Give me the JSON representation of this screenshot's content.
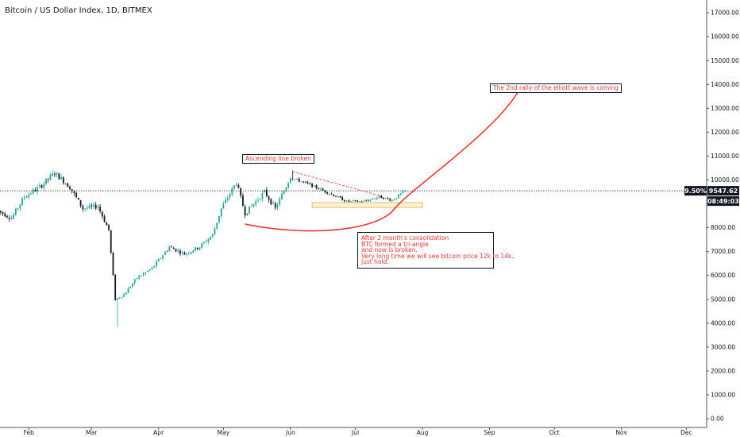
{
  "header": {
    "symbol_title": "Bitcoin / US Dollar Index, 1D, BITMEX"
  },
  "annotations": {
    "ascending": "Ascending  line broken",
    "rally": "The 2nd rally of the elliott wave is coming",
    "note": "After 2 month's consolidation\nBTC formed a tri-angle\nand now is broken.\nVery long time we will see bitcoin price 12k to 14k..\njust hold."
  },
  "price_scale": {
    "pct_change": "9.50%",
    "last_price": "9547.62",
    "countdown": "08:49:03"
  },
  "colors": {
    "up": "#26a69a",
    "down": "#131722",
    "annotation": "#e53935",
    "zone": "#fff3d6"
  },
  "chart_data": {
    "type": "candlestick",
    "title": "Bitcoin / US Dollar Index, 1D, BITMEX",
    "ylim": [
      0,
      17500
    ],
    "y_ticks": [
      "0.00",
      "1000.00",
      "2000.00",
      "3000.00",
      "4000.00",
      "5000.00",
      "6000.00",
      "7000.00",
      "8000.00",
      "9000.00",
      "10000.00",
      "11000.00",
      "12000.00",
      "13000.00",
      "14000.00",
      "15000.00",
      "16000.00",
      "17000.00"
    ],
    "x_ticks": [
      "Feb",
      "Mar",
      "Apr",
      "May",
      "Jun",
      "Jul",
      "Aug",
      "Sep",
      "Oct",
      "Nov",
      "Dec"
    ],
    "last_price": 9547.62,
    "close_path": [
      [
        "2020-01-18",
        8700
      ],
      [
        "2020-01-24",
        8400
      ],
      [
        "2020-01-30",
        9300
      ],
      [
        "2020-02-06",
        9700
      ],
      [
        "2020-02-13",
        10300
      ],
      [
        "2020-02-20",
        9700
      ],
      [
        "2020-02-26",
        8800
      ],
      [
        "2020-03-04",
        8900
      ],
      [
        "2020-03-09",
        7900
      ],
      [
        "2020-03-12",
        5000
      ],
      [
        "2020-03-16",
        5200
      ],
      [
        "2020-03-22",
        5900
      ],
      [
        "2020-03-29",
        6300
      ],
      [
        "2020-04-06",
        7200
      ],
      [
        "2020-04-13",
        6900
      ],
      [
        "2020-04-20",
        7200
      ],
      [
        "2020-04-26",
        7700
      ],
      [
        "2020-04-30",
        8800
      ],
      [
        "2020-05-07",
        9900
      ],
      [
        "2020-05-11",
        8600
      ],
      [
        "2020-05-20",
        9500
      ],
      [
        "2020-05-25",
        8800
      ],
      [
        "2020-06-01",
        10100
      ],
      [
        "2020-06-10",
        9800
      ],
      [
        "2020-06-20",
        9400
      ],
      [
        "2020-06-27",
        9100
      ],
      [
        "2020-07-05",
        9100
      ],
      [
        "2020-07-12",
        9300
      ],
      [
        "2020-07-18",
        9150
      ],
      [
        "2020-07-24",
        9550
      ]
    ],
    "low_extreme": {
      "date": "2020-03-13",
      "value": 3850
    },
    "high_extreme": {
      "date": "2020-06-02",
      "value": 10400
    },
    "consolidation_zone": {
      "from": "2020-06-11",
      "to": "2020-08-01",
      "low": 8850,
      "high": 9050
    },
    "descending_trendline": [
      [
        "2020-06-02",
        10350
      ],
      [
        "2020-07-12",
        9350
      ]
    ],
    "rally_curve": [
      [
        "2020-05-11",
        8150
      ],
      [
        "2020-06-11",
        7980
      ],
      [
        "2020-07-19",
        8780
      ],
      [
        "2020-09-16",
        14000
      ]
    ]
  }
}
